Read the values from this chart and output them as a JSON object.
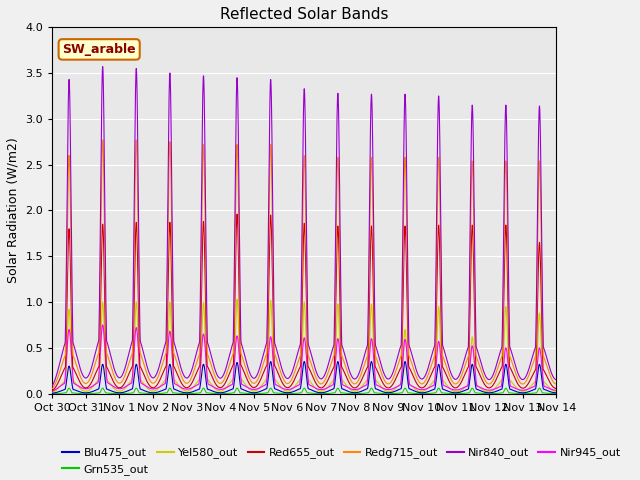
{
  "title": "Reflected Solar Bands",
  "ylabel": "Solar Radiation (W/m2)",
  "ylim": [
    0,
    4.0
  ],
  "yticks": [
    0.0,
    0.5,
    1.0,
    1.5,
    2.0,
    2.5,
    3.0,
    3.5,
    4.0
  ],
  "total_days": 16,
  "tick_labels": [
    "Oct 30",
    "Oct 31",
    "Nov 1",
    "Nov 2",
    "Nov 3",
    "Nov 4",
    "Nov 5",
    "Nov 6",
    "Nov 7",
    "Nov 8",
    "Nov 9",
    "Nov 10",
    "Nov 11",
    "Nov 12",
    "Nov 13",
    "Nov 14"
  ],
  "day_peak_nir840": [
    3.43,
    3.57,
    3.55,
    3.5,
    3.47,
    3.45,
    3.43,
    3.33,
    3.28,
    3.27,
    3.27,
    3.25,
    3.15,
    3.15,
    3.14,
    3.14
  ],
  "day_peak_redg715": [
    2.6,
    2.77,
    2.77,
    2.75,
    2.72,
    2.72,
    2.72,
    2.6,
    2.58,
    2.58,
    2.58,
    2.58,
    2.54,
    2.54,
    2.54,
    2.54
  ],
  "day_peak_red655": [
    1.8,
    1.85,
    1.87,
    1.87,
    1.88,
    1.96,
    1.95,
    1.86,
    1.83,
    1.83,
    1.83,
    1.84,
    1.84,
    1.84,
    1.65,
    1.65
  ],
  "day_peak_nir945": [
    0.7,
    0.75,
    0.72,
    0.68,
    0.65,
    0.63,
    0.62,
    0.61,
    0.6,
    0.6,
    0.59,
    0.57,
    0.52,
    0.5,
    0.5,
    0.5
  ],
  "day_peak_yel580": [
    0.92,
    1.0,
    1.0,
    1.0,
    1.0,
    1.03,
    1.02,
    1.0,
    0.98,
    0.98,
    0.7,
    0.95,
    0.62,
    0.95,
    0.88,
    0.88
  ],
  "day_peak_grn535": [
    0.06,
    0.06,
    0.06,
    0.06,
    0.06,
    0.06,
    0.06,
    0.06,
    0.06,
    0.06,
    0.06,
    0.06,
    0.06,
    0.06,
    0.06,
    0.06
  ],
  "day_peak_blu475": [
    0.3,
    0.32,
    0.32,
    0.32,
    0.32,
    0.34,
    0.35,
    0.35,
    0.35,
    0.35,
    0.35,
    0.32,
    0.32,
    0.32,
    0.32,
    0.32
  ],
  "color_nir840": "#9900cc",
  "color_redg715": "#ff8800",
  "color_red655": "#cc0000",
  "color_nir945": "#ff00ff",
  "color_yel580": "#cccc00",
  "color_grn535": "#00cc00",
  "color_blu475": "#0000cc",
  "annotation_text": "SW_arable",
  "bg_color": "#e8e8e8",
  "fig_bg": "#f0f0f0"
}
